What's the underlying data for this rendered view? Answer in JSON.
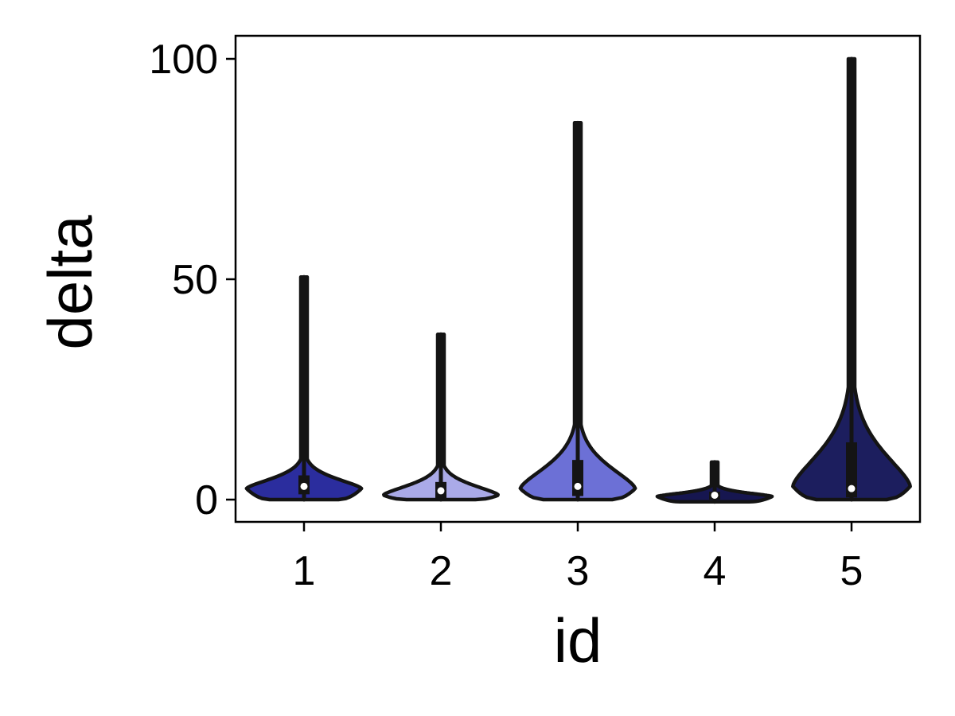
{
  "chart_data": {
    "type": "violin",
    "xlabel": "id",
    "ylabel": "delta",
    "categories": [
      "1",
      "2",
      "3",
      "4",
      "5"
    ],
    "ylim": [
      -5,
      105
    ],
    "yticks": [
      0,
      50,
      100
    ],
    "grid": false,
    "colors": [
      "#2b2d9e",
      "#aaaae8",
      "#6c70d6",
      "#161650",
      "#1c1e5e"
    ],
    "series": [
      {
        "category": "1",
        "min": 0,
        "q1": 1.2,
        "median": 3,
        "q3": 5.5,
        "max": 50.5,
        "kde_mode": 2.5
      },
      {
        "category": "2",
        "min": 0,
        "q1": 0.3,
        "median": 2,
        "q3": 4,
        "max": 37.5,
        "kde_mode": 1
      },
      {
        "category": "3",
        "min": 0,
        "q1": 0.8,
        "median": 3,
        "q3": 9,
        "max": 85.5,
        "kde_mode": 2.5
      },
      {
        "category": "4",
        "min": -0.5,
        "q1": 0,
        "median": 1,
        "q3": 1.8,
        "max": 8.5,
        "kde_mode": 0.7
      },
      {
        "category": "5",
        "min": 0,
        "q1": 0.5,
        "median": 2.5,
        "q3": 13,
        "max": 100,
        "kde_mode": 3
      }
    ]
  }
}
